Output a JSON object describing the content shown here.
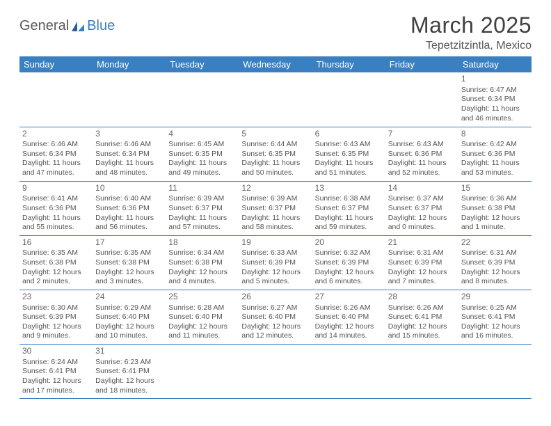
{
  "logo": {
    "part1": "General",
    "part2": "Blue"
  },
  "title": "March 2025",
  "location": "Tepetzitzintla, Mexico",
  "colors": {
    "header_bg": "#3a7fbf",
    "header_text": "#ffffff",
    "border": "#3a7fbf",
    "text": "#555555",
    "title_text": "#404040",
    "logo_gray": "#5a5a5a",
    "logo_blue": "#3a7fbf",
    "background": "#ffffff"
  },
  "dayHeaders": [
    "Sunday",
    "Monday",
    "Tuesday",
    "Wednesday",
    "Thursday",
    "Friday",
    "Saturday"
  ],
  "weeks": [
    [
      null,
      null,
      null,
      null,
      null,
      null,
      {
        "n": "1",
        "sr": "6:47 AM",
        "ss": "6:34 PM",
        "dl": "11 hours and 46 minutes."
      }
    ],
    [
      {
        "n": "2",
        "sr": "6:46 AM",
        "ss": "6:34 PM",
        "dl": "11 hours and 47 minutes."
      },
      {
        "n": "3",
        "sr": "6:46 AM",
        "ss": "6:34 PM",
        "dl": "11 hours and 48 minutes."
      },
      {
        "n": "4",
        "sr": "6:45 AM",
        "ss": "6:35 PM",
        "dl": "11 hours and 49 minutes."
      },
      {
        "n": "5",
        "sr": "6:44 AM",
        "ss": "6:35 PM",
        "dl": "11 hours and 50 minutes."
      },
      {
        "n": "6",
        "sr": "6:43 AM",
        "ss": "6:35 PM",
        "dl": "11 hours and 51 minutes."
      },
      {
        "n": "7",
        "sr": "6:43 AM",
        "ss": "6:36 PM",
        "dl": "11 hours and 52 minutes."
      },
      {
        "n": "8",
        "sr": "6:42 AM",
        "ss": "6:36 PM",
        "dl": "11 hours and 53 minutes."
      }
    ],
    [
      {
        "n": "9",
        "sr": "6:41 AM",
        "ss": "6:36 PM",
        "dl": "11 hours and 55 minutes."
      },
      {
        "n": "10",
        "sr": "6:40 AM",
        "ss": "6:36 PM",
        "dl": "11 hours and 56 minutes."
      },
      {
        "n": "11",
        "sr": "6:39 AM",
        "ss": "6:37 PM",
        "dl": "11 hours and 57 minutes."
      },
      {
        "n": "12",
        "sr": "6:39 AM",
        "ss": "6:37 PM",
        "dl": "11 hours and 58 minutes."
      },
      {
        "n": "13",
        "sr": "6:38 AM",
        "ss": "6:37 PM",
        "dl": "11 hours and 59 minutes."
      },
      {
        "n": "14",
        "sr": "6:37 AM",
        "ss": "6:37 PM",
        "dl": "12 hours and 0 minutes."
      },
      {
        "n": "15",
        "sr": "6:36 AM",
        "ss": "6:38 PM",
        "dl": "12 hours and 1 minute."
      }
    ],
    [
      {
        "n": "16",
        "sr": "6:35 AM",
        "ss": "6:38 PM",
        "dl": "12 hours and 2 minutes."
      },
      {
        "n": "17",
        "sr": "6:35 AM",
        "ss": "6:38 PM",
        "dl": "12 hours and 3 minutes."
      },
      {
        "n": "18",
        "sr": "6:34 AM",
        "ss": "6:38 PM",
        "dl": "12 hours and 4 minutes."
      },
      {
        "n": "19",
        "sr": "6:33 AM",
        "ss": "6:39 PM",
        "dl": "12 hours and 5 minutes."
      },
      {
        "n": "20",
        "sr": "6:32 AM",
        "ss": "6:39 PM",
        "dl": "12 hours and 6 minutes."
      },
      {
        "n": "21",
        "sr": "6:31 AM",
        "ss": "6:39 PM",
        "dl": "12 hours and 7 minutes."
      },
      {
        "n": "22",
        "sr": "6:31 AM",
        "ss": "6:39 PM",
        "dl": "12 hours and 8 minutes."
      }
    ],
    [
      {
        "n": "23",
        "sr": "6:30 AM",
        "ss": "6:39 PM",
        "dl": "12 hours and 9 minutes."
      },
      {
        "n": "24",
        "sr": "6:29 AM",
        "ss": "6:40 PM",
        "dl": "12 hours and 10 minutes."
      },
      {
        "n": "25",
        "sr": "6:28 AM",
        "ss": "6:40 PM",
        "dl": "12 hours and 11 minutes."
      },
      {
        "n": "26",
        "sr": "6:27 AM",
        "ss": "6:40 PM",
        "dl": "12 hours and 12 minutes."
      },
      {
        "n": "27",
        "sr": "6:26 AM",
        "ss": "6:40 PM",
        "dl": "12 hours and 14 minutes."
      },
      {
        "n": "28",
        "sr": "6:26 AM",
        "ss": "6:41 PM",
        "dl": "12 hours and 15 minutes."
      },
      {
        "n": "29",
        "sr": "6:25 AM",
        "ss": "6:41 PM",
        "dl": "12 hours and 16 minutes."
      }
    ],
    [
      {
        "n": "30",
        "sr": "6:24 AM",
        "ss": "6:41 PM",
        "dl": "12 hours and 17 minutes."
      },
      {
        "n": "31",
        "sr": "6:23 AM",
        "ss": "6:41 PM",
        "dl": "12 hours and 18 minutes."
      },
      null,
      null,
      null,
      null,
      null
    ]
  ],
  "labels": {
    "sunrise": "Sunrise:",
    "sunset": "Sunset:",
    "daylight": "Daylight:"
  }
}
